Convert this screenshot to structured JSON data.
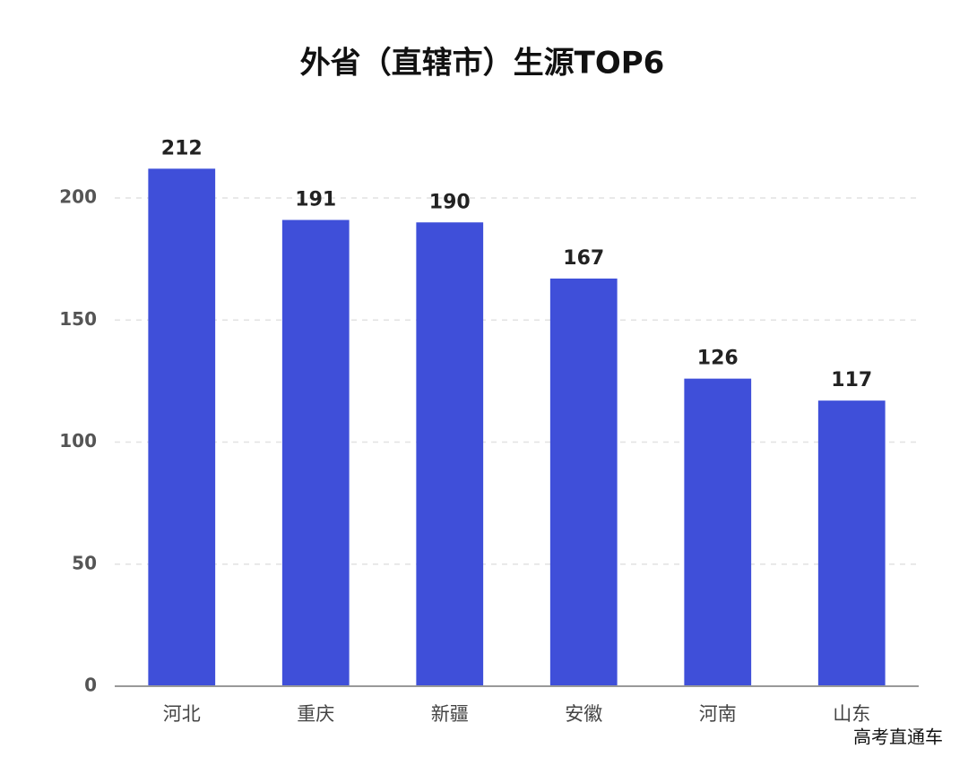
{
  "chart_data": {
    "type": "bar",
    "title": "外省（直辖市）生源TOP6",
    "categories": [
      "河北",
      "重庆",
      "新疆",
      "安徽",
      "河南",
      "山东"
    ],
    "values": [
      212,
      191,
      190,
      167,
      126,
      117
    ],
    "color": "#3f4fd9",
    "ylim": [
      0,
      220
    ],
    "yticks": [
      0,
      50,
      100,
      150,
      200
    ],
    "grid": true,
    "watermark": "高考直通车"
  }
}
